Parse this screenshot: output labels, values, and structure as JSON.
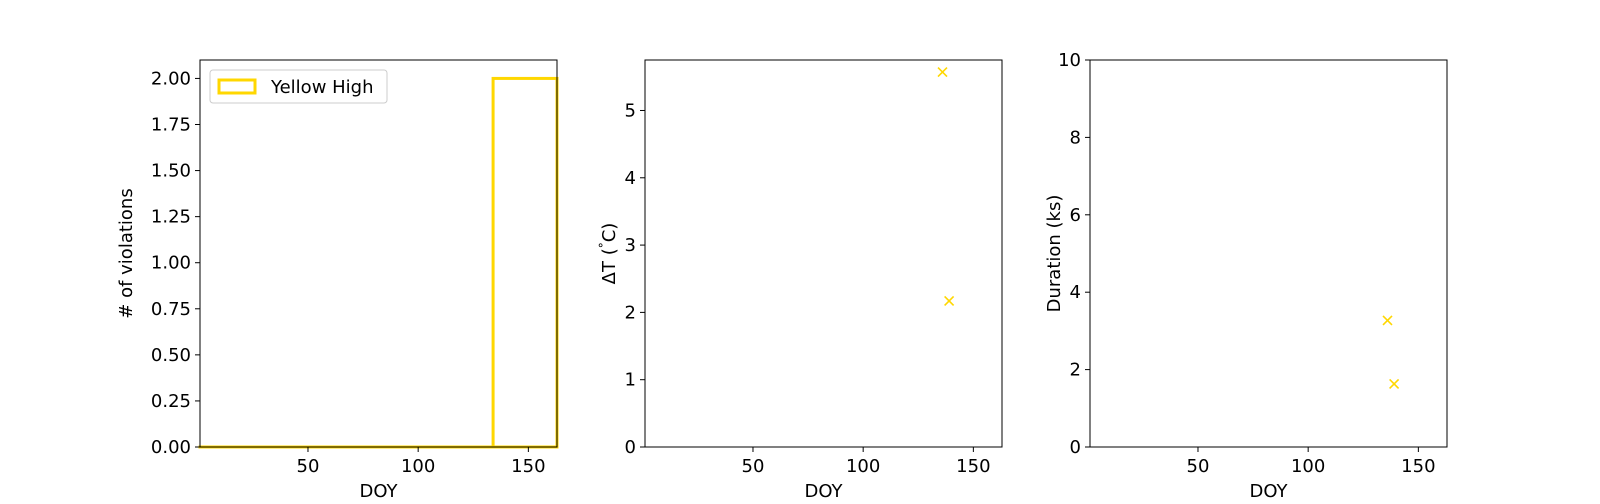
{
  "colors": {
    "series": "#FFD700",
    "axis": "#000000",
    "background": "#ffffff"
  },
  "chart_data": [
    {
      "type": "step",
      "xlabel": "DOY",
      "ylabel": "# of violations",
      "xlim": [
        1,
        163
      ],
      "ylim": [
        0,
        2.1
      ],
      "xticks": [
        50,
        100,
        150
      ],
      "yticks": [
        0,
        0.25,
        0.5,
        0.75,
        1.0,
        1.25,
        1.5,
        1.75,
        2.0
      ],
      "ytick_labels": [
        "0.00",
        "0.25",
        "0.50",
        "0.75",
        "1.00",
        "1.25",
        "1.50",
        "1.75",
        "2.00"
      ],
      "legend": {
        "position": "top-left",
        "entries": [
          "Yellow High"
        ]
      },
      "series": [
        {
          "name": "Yellow High",
          "bins": [
            {
              "x0": 1,
              "x1": 134,
              "count": 0
            },
            {
              "x0": 134,
              "x1": 163,
              "count": 2
            }
          ]
        }
      ]
    },
    {
      "type": "scatter",
      "xlabel": "DOY",
      "ylabel": "ΔT ($^\\circ$C)",
      "xlim": [
        1,
        163
      ],
      "ylim": [
        0,
        5.75
      ],
      "xticks": [
        50,
        100,
        150
      ],
      "yticks": [
        0,
        1,
        2,
        3,
        4,
        5
      ],
      "marker": "x",
      "series": [
        {
          "points": [
            {
              "x": 136,
              "y": 5.57
            },
            {
              "x": 139,
              "y": 2.17
            }
          ]
        }
      ]
    },
    {
      "type": "scatter",
      "xlabel": "DOY",
      "ylabel": "Duration (ks)",
      "xlim": [
        1,
        163
      ],
      "ylim": [
        0,
        10
      ],
      "xticks": [
        50,
        100,
        150
      ],
      "yticks": [
        0,
        2,
        4,
        6,
        8,
        10
      ],
      "marker": "x",
      "series": [
        {
          "points": [
            {
              "x": 136,
              "y": 3.27
            },
            {
              "x": 139,
              "y": 1.63
            }
          ]
        }
      ]
    }
  ]
}
